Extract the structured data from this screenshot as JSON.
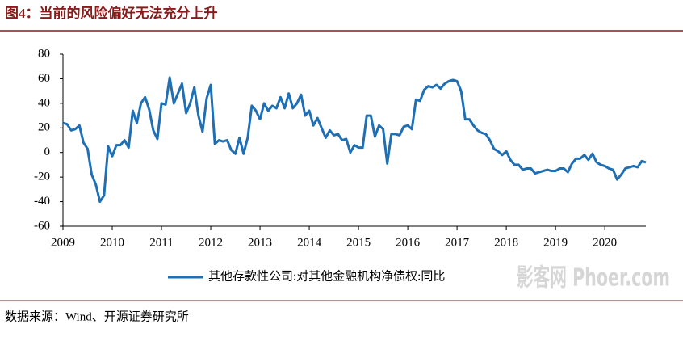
{
  "chart_data": {
    "type": "line",
    "title": "图4：当前的风险偏好无法充分上升",
    "source": "数据来源：Wind、开源证券研究所",
    "watermark": "影客网 Phoer.com",
    "categories": [
      "2009",
      null,
      null,
      null,
      null,
      null,
      null,
      null,
      null,
      null,
      null,
      null,
      "2010",
      null,
      null,
      null,
      null,
      null,
      null,
      null,
      null,
      null,
      null,
      null,
      "2011",
      null,
      null,
      null,
      null,
      null,
      null,
      null,
      null,
      null,
      null,
      null,
      "2012",
      null,
      null,
      null,
      null,
      null,
      null,
      null,
      null,
      null,
      null,
      null,
      "2013",
      null,
      null,
      null,
      null,
      null,
      null,
      null,
      null,
      null,
      null,
      null,
      "2014",
      null,
      null,
      null,
      null,
      null,
      null,
      null,
      null,
      null,
      null,
      null,
      "2015",
      null,
      null,
      null,
      null,
      null,
      null,
      null,
      null,
      null,
      null,
      null,
      "2016",
      null,
      null,
      null,
      null,
      null,
      null,
      null,
      null,
      null,
      null,
      null,
      "2017",
      null,
      null,
      null,
      null,
      null,
      null,
      null,
      null,
      null,
      null,
      null,
      "2018",
      null,
      null,
      null,
      null,
      null,
      null,
      null,
      null,
      null,
      null,
      null,
      "2019",
      null,
      null,
      null,
      null,
      null,
      null,
      null,
      null,
      null,
      null,
      null,
      "2020",
      null,
      null,
      null,
      null,
      null,
      null,
      null,
      null,
      null,
      null
    ],
    "series": [
      {
        "name": "其他存款性公司:对其他金融机构净债权:同比",
        "color": "#1f6fb5",
        "values": [
          24,
          23,
          18,
          19,
          22,
          8,
          3,
          -18,
          -26,
          -40,
          -35,
          5,
          -3,
          6,
          6,
          10,
          4,
          34,
          24,
          40,
          45,
          35,
          18,
          11,
          40,
          39,
          61,
          40,
          48,
          56,
          32,
          40,
          53,
          30,
          17,
          44,
          55,
          7,
          10,
          9,
          10,
          2,
          -1,
          12,
          -1,
          12,
          38,
          34,
          27,
          40,
          34,
          38,
          36,
          45,
          36,
          48,
          36,
          40,
          47,
          30,
          34,
          22,
          28,
          20,
          12,
          18,
          14,
          15,
          10,
          11,
          0,
          6,
          4,
          4,
          30,
          30,
          13,
          22,
          19,
          -9,
          15,
          15,
          14,
          21,
          22,
          19,
          43,
          42,
          51,
          54,
          53,
          55,
          52,
          56,
          58,
          59,
          58,
          50,
          27,
          27,
          22,
          18,
          16,
          15,
          10,
          3,
          1,
          -2,
          1,
          -6,
          -10,
          -10,
          -14,
          -13,
          -13,
          -17,
          -16,
          -15,
          -14,
          -15,
          -15,
          -13,
          -13,
          -16,
          -9,
          -5,
          -5,
          -2,
          -6,
          -1,
          -8,
          -10,
          -11,
          -13,
          -14,
          -22,
          -18,
          -13,
          -12,
          -11,
          -12,
          -7,
          -8
        ]
      }
    ],
    "ylim": [
      -60,
      80
    ],
    "yticks": [
      -60,
      -40,
      -20,
      0,
      20,
      40,
      60,
      80
    ],
    "grid": false
  }
}
